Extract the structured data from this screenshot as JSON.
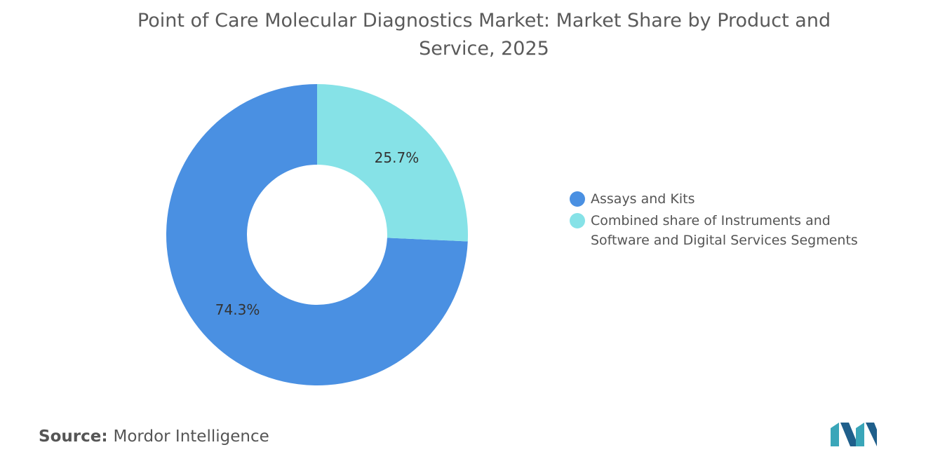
{
  "chart_data": {
    "type": "donut",
    "title": "Point of Care Molecular Diagnostics Market: Market Share by Product and Service, 2025",
    "categories": [
      "Assays and Kits",
      "Combined share of Instruments and Software and Digital Services Segments"
    ],
    "values": [
      74.3,
      25.7
    ],
    "value_labels": [
      "74.3%",
      "25.7%"
    ],
    "colors": [
      "#4a90e2",
      "#86e2e7"
    ],
    "legend": "right",
    "source_label": "Source:",
    "source": "Mordor Intelligence"
  }
}
